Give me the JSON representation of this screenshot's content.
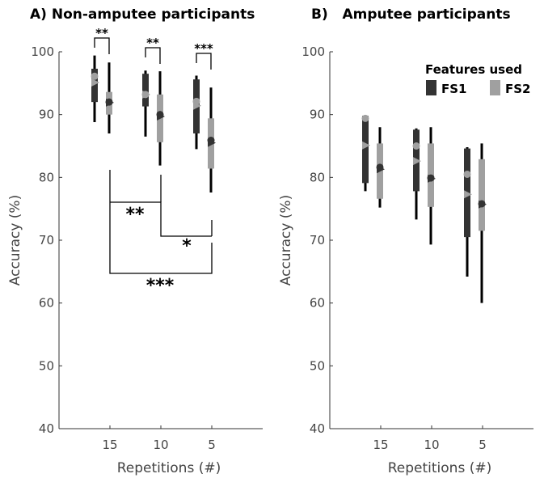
{
  "panels": [
    {
      "title": "A) Non-amputee participants"
    },
    {
      "title": "B)   Amputee participants"
    }
  ],
  "legend": {
    "title": "Features used",
    "entries": [
      "FS1",
      "FS2"
    ]
  },
  "chart_data": [
    {
      "type": "box",
      "title": "A) Non-amputee participants",
      "xlabel": "Repetitions (#)",
      "ylabel": "Accuracy (%)",
      "ylim": [
        40,
        100
      ],
      "yticks": [
        40,
        50,
        60,
        70,
        80,
        90,
        100
      ],
      "categories": [
        "15",
        "10",
        "5"
      ],
      "grid": false,
      "series": [
        {
          "name": "FS1",
          "color": "#333333",
          "marker_color": "#a0a0a0",
          "whisker_low": [
            88.8,
            86.5,
            84.5
          ],
          "q1": [
            92.0,
            91.3,
            87.0
          ],
          "q3": [
            97.3,
            96.5,
            95.6
          ],
          "whisker_high": [
            99.4,
            97.0,
            96.2
          ],
          "mean": [
            96.1,
            93.2,
            92.1
          ],
          "median": [
            95.1,
            93.2,
            91.4
          ]
        },
        {
          "name": "FS2",
          "color": "#a0a0a0",
          "marker_color": "#333333",
          "whisker_low": [
            87.0,
            81.9,
            77.6
          ],
          "q1": [
            90.0,
            85.6,
            81.4
          ],
          "q3": [
            93.6,
            93.2,
            89.4
          ],
          "whisker_high": [
            98.3,
            96.9,
            94.3
          ],
          "mean": [
            92.0,
            90.0,
            85.9
          ],
          "median": [
            91.9,
            89.7,
            85.5
          ]
        }
      ],
      "annotations": [
        {
          "text": "**",
          "between": [
            "15 FS1",
            "15 FS2"
          ]
        },
        {
          "text": "**",
          "between": [
            "10 FS1",
            "10 FS2"
          ]
        },
        {
          "text": "***",
          "between": [
            "5 FS1",
            "5 FS2"
          ]
        },
        {
          "text": "**",
          "between": [
            "15",
            "10"
          ]
        },
        {
          "text": "*",
          "between": [
            "10",
            "5"
          ]
        },
        {
          "text": "***",
          "between": [
            "15",
            "5"
          ]
        }
      ]
    },
    {
      "type": "box",
      "title": "B)   Amputee participants",
      "xlabel": "Repetitions (#)",
      "ylabel": "Accuracy (%)",
      "ylim": [
        40,
        100
      ],
      "yticks": [
        40,
        50,
        60,
        70,
        80,
        90,
        100
      ],
      "categories": [
        "15",
        "10",
        "5"
      ],
      "grid": false,
      "legend_position": "top-right",
      "series": [
        {
          "name": "FS1",
          "color": "#333333",
          "marker_color": "#a0a0a0",
          "whisker_low": [
            77.8,
            73.3,
            64.2
          ],
          "q1": [
            79.1,
            77.8,
            70.5
          ],
          "q3": [
            89.8,
            87.6,
            84.6
          ],
          "whisker_high": [
            89.8,
            87.8,
            84.8
          ],
          "mean": [
            89.4,
            85.0,
            80.5
          ],
          "median": [
            85.1,
            82.6,
            77.3
          ]
        },
        {
          "name": "FS2",
          "color": "#a0a0a0",
          "marker_color": "#333333",
          "whisker_low": [
            75.2,
            69.3,
            60.0
          ],
          "q1": [
            76.6,
            75.3,
            71.5
          ],
          "q3": [
            85.4,
            85.4,
            82.9
          ],
          "whisker_high": [
            88.0,
            88.0,
            85.4
          ],
          "mean": [
            81.6,
            79.9,
            75.8
          ],
          "median": [
            81.3,
            79.8,
            75.7
          ]
        }
      ]
    }
  ]
}
